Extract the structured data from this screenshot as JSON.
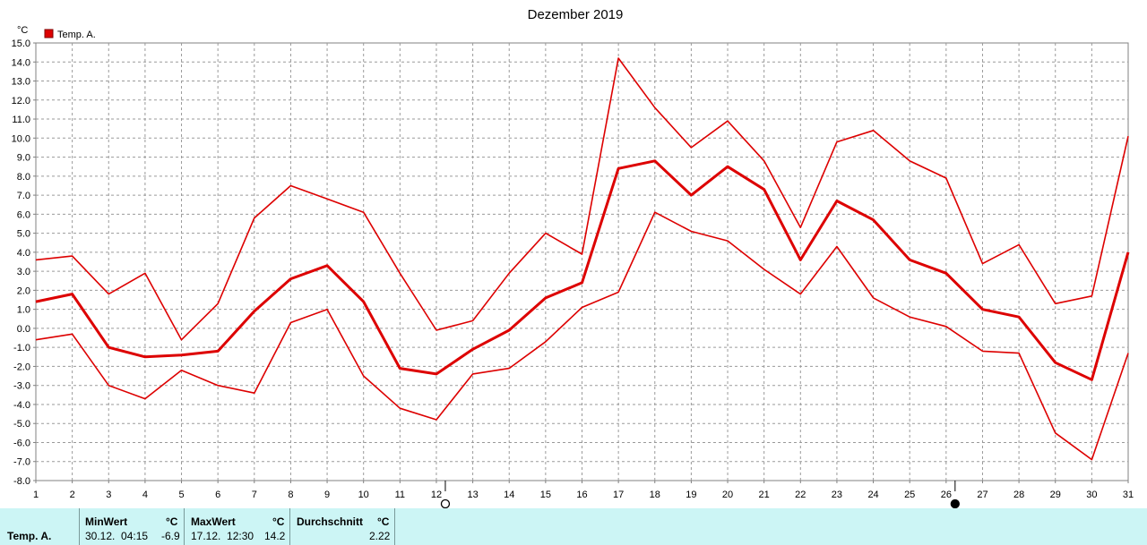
{
  "chart_data": {
    "type": "line",
    "title": "Dezember 2019",
    "ylabel": "°C",
    "ylim": [
      -8.0,
      15.0
    ],
    "yticks": [
      "15.0",
      "14.0",
      "13.0",
      "12.0",
      "11.0",
      "10.0",
      "9.0",
      "8.0",
      "7.0",
      "6.0",
      "5.0",
      "4.0",
      "3.0",
      "2.0",
      "1.0",
      "0.0",
      "-1.0",
      "-2.0",
      "-3.0",
      "-4.0",
      "-5.0",
      "-6.0",
      "-7.0",
      "-8.0"
    ],
    "x": [
      1,
      2,
      3,
      4,
      5,
      6,
      7,
      8,
      9,
      10,
      11,
      12,
      13,
      14,
      15,
      16,
      17,
      18,
      19,
      20,
      21,
      22,
      23,
      24,
      25,
      26,
      27,
      28,
      29,
      30,
      31
    ],
    "xticks": [
      "1",
      "2",
      "3",
      "4",
      "5",
      "6",
      "7",
      "8",
      "9",
      "10",
      "11",
      "12",
      "13",
      "14",
      "15",
      "16",
      "17",
      "18",
      "19",
      "20",
      "21",
      "22",
      "23",
      "24",
      "25",
      "26",
      "27",
      "28",
      "29",
      "30",
      "31"
    ],
    "legend": [
      {
        "label": "Temp. A.",
        "color": "#dd0000"
      }
    ],
    "grid": true,
    "moon_phases": [
      {
        "day": 12,
        "phase": "full"
      },
      {
        "day": 26,
        "phase": "new"
      }
    ],
    "series": [
      {
        "role": "max",
        "color": "#dd0000",
        "values": [
          3.6,
          3.8,
          1.8,
          2.9,
          -0.6,
          1.3,
          5.8,
          7.5,
          6.8,
          6.1,
          2.9,
          -0.1,
          0.4,
          2.9,
          5.0,
          3.9,
          14.2,
          11.6,
          9.5,
          10.9,
          8.8,
          5.3,
          9.8,
          10.4,
          8.8,
          7.9,
          3.4,
          4.4,
          1.3,
          1.7,
          10.1
        ]
      },
      {
        "role": "mean",
        "color": "#dd0000",
        "values": [
          1.4,
          1.8,
          -1.0,
          -1.5,
          -1.4,
          -1.2,
          0.9,
          2.6,
          3.3,
          1.4,
          -2.1,
          -2.4,
          -1.1,
          -0.1,
          1.6,
          2.4,
          8.4,
          8.8,
          7.0,
          8.5,
          7.3,
          3.6,
          6.7,
          5.7,
          3.6,
          2.9,
          1.0,
          0.6,
          -1.8,
          -2.7,
          4.0
        ]
      },
      {
        "role": "min",
        "color": "#dd0000",
        "values": [
          -0.6,
          -0.3,
          -3.0,
          -3.7,
          -2.2,
          -3.0,
          -3.4,
          0.3,
          1.0,
          -2.5,
          -4.2,
          -4.8,
          -2.4,
          -2.1,
          -0.7,
          1.1,
          1.9,
          6.1,
          5.1,
          4.6,
          3.1,
          1.8,
          4.3,
          1.6,
          0.6,
          0.1,
          -1.2,
          -1.3,
          -5.5,
          -6.9,
          -1.3
        ]
      }
    ]
  },
  "stats": {
    "series_label": "Temp. A.",
    "min_header": "MinWert",
    "min_unit": "°C",
    "min_time": "30.12.  04:15",
    "min_value": "-6.9",
    "max_header": "MaxWert",
    "max_unit": "°C",
    "max_time": "17.12.  12:30",
    "max_value": "14.2",
    "avg_header": "Durchschnitt",
    "avg_unit": "°C",
    "avg_value": "2.22"
  }
}
